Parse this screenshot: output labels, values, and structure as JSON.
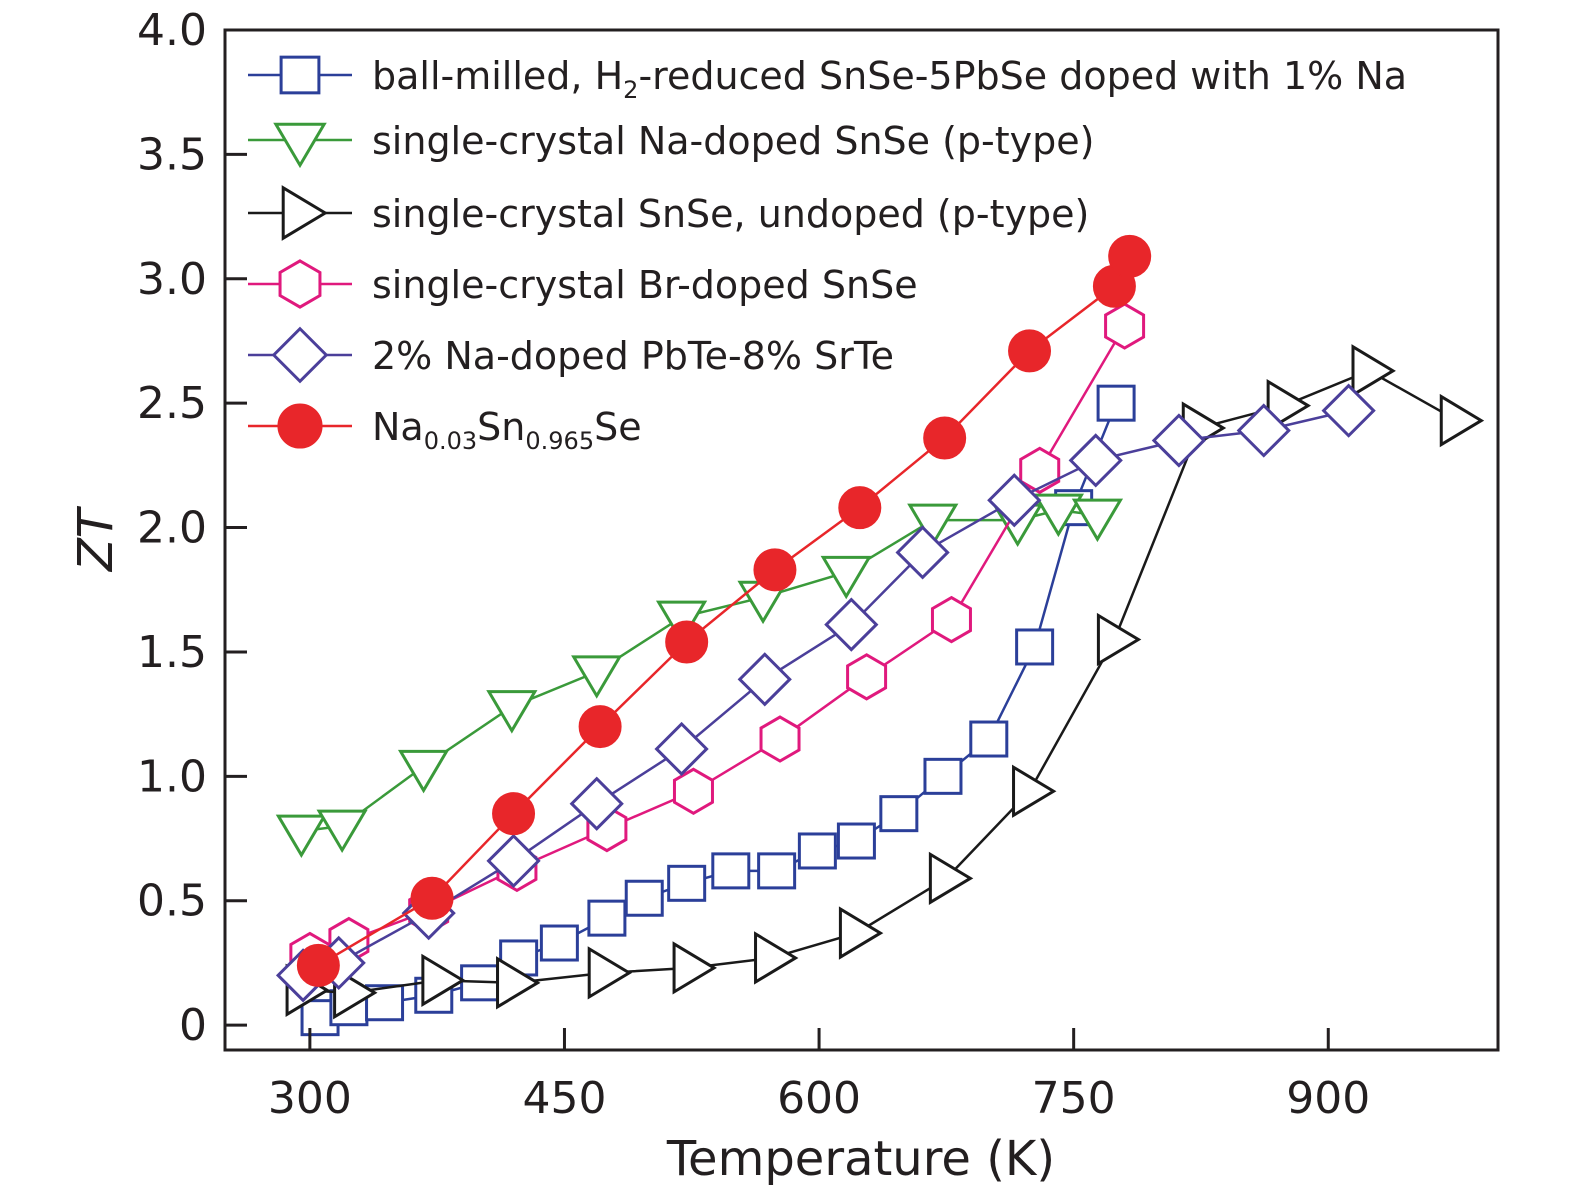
{
  "chart_data": {
    "type": "line",
    "title": "",
    "xlabel": "Temperature (K)",
    "ylabel": "ZT",
    "xlim": [
      250,
      1000
    ],
    "ylim": [
      -0.1,
      4.0
    ],
    "xticks": [
      300,
      450,
      600,
      750,
      900
    ],
    "yticks": [
      0,
      0.5,
      1.0,
      1.5,
      2.0,
      2.5,
      3.0,
      3.5,
      4.0
    ],
    "ytick_labels": [
      "0",
      "0.5",
      "1.0",
      "1.5",
      "2.0",
      "2.5",
      "3.0",
      "3.5",
      "4.0"
    ],
    "grid": false,
    "legend_position": "top-left",
    "series": [
      {
        "name": "ball-milled, H2-reduced SnSe-5PbSe doped with 1% Na",
        "label_parts": [
          {
            "t": "ball-milled, H"
          },
          {
            "t": "2",
            "sub": true
          },
          {
            "t": "-reduced SnSe-5PbSe doped with 1% Na"
          }
        ],
        "marker": "square",
        "color": "#2b3f99",
        "filled": false,
        "x": [
          306,
          323,
          344,
          373,
          400,
          423,
          447,
          475,
          497,
          522,
          548,
          575,
          599,
          622,
          647,
          673,
          700,
          727,
          750,
          775
        ],
        "y": [
          0.03,
          0.07,
          0.09,
          0.12,
          0.17,
          0.27,
          0.33,
          0.43,
          0.51,
          0.57,
          0.62,
          0.62,
          0.7,
          0.74,
          0.85,
          1.0,
          1.15,
          1.52,
          2.08,
          2.5
        ]
      },
      {
        "name": "single-crystal Na-doped SnSe (p-type)",
        "label_parts": [
          {
            "t": "single-crystal Na-doped SnSe (p-type)"
          }
        ],
        "marker": "triangle-down",
        "color": "#3a9a3a",
        "filled": false,
        "x": [
          295,
          319,
          367,
          419,
          469,
          519,
          567,
          616,
          667,
          717,
          741,
          764
        ],
        "y": [
          0.78,
          0.8,
          1.04,
          1.28,
          1.42,
          1.64,
          1.72,
          1.82,
          2.03,
          2.03,
          2.07,
          2.05
        ]
      },
      {
        "name": "single-crystal SnSe, undoped (p-type)",
        "label_parts": [
          {
            "t": "single-crystal SnSe, undoped (p-type)"
          }
        ],
        "marker": "triangle-right",
        "color": "#1a1a1a",
        "filled": false,
        "x": [
          296,
          324,
          376,
          420,
          474,
          524,
          572,
          622,
          675,
          724,
          774,
          824,
          874,
          924,
          976
        ],
        "y": [
          0.14,
          0.13,
          0.18,
          0.17,
          0.21,
          0.23,
          0.27,
          0.37,
          0.59,
          0.94,
          1.55,
          2.4,
          2.49,
          2.63,
          2.43
        ]
      },
      {
        "name": "single-crystal Br-doped SnSe",
        "label_parts": [
          {
            "t": "single-crystal Br-doped SnSe"
          }
        ],
        "marker": "hexagon",
        "color": "#e0197d",
        "filled": false,
        "x": [
          300,
          323,
          370,
          422,
          475,
          526,
          577,
          628,
          678,
          730,
          780
        ],
        "y": [
          0.28,
          0.34,
          0.46,
          0.63,
          0.79,
          0.94,
          1.15,
          1.4,
          1.63,
          2.23,
          2.81
        ]
      },
      {
        "name": "2% Na-doped PbTe-8% SrTe",
        "label_parts": [
          {
            "t": "2% Na-doped PbTe-8% SrTe"
          }
        ],
        "marker": "diamond",
        "color": "#4b3f9a",
        "filled": false,
        "x": [
          296,
          317,
          370,
          420,
          469,
          519,
          568,
          619,
          661,
          715,
          763,
          812,
          862,
          912
        ],
        "y": [
          0.2,
          0.25,
          0.45,
          0.66,
          0.89,
          1.11,
          1.39,
          1.61,
          1.9,
          2.11,
          2.27,
          2.35,
          2.39,
          2.47
        ]
      },
      {
        "name": "Na0.03Sn0.965Se",
        "label_parts": [
          {
            "t": "Na"
          },
          {
            "t": "0.03",
            "sub": true
          },
          {
            "t": "Sn"
          },
          {
            "t": "0.965",
            "sub": true
          },
          {
            "t": "Se"
          }
        ],
        "marker": "circle",
        "color": "#e8262a",
        "filled": true,
        "x": [
          305,
          372,
          420,
          471,
          522,
          574,
          624,
          674,
          724,
          774,
          783
        ],
        "y": [
          0.24,
          0.51,
          0.85,
          1.2,
          1.54,
          1.83,
          2.08,
          2.36,
          2.71,
          2.97,
          3.09
        ]
      }
    ]
  }
}
